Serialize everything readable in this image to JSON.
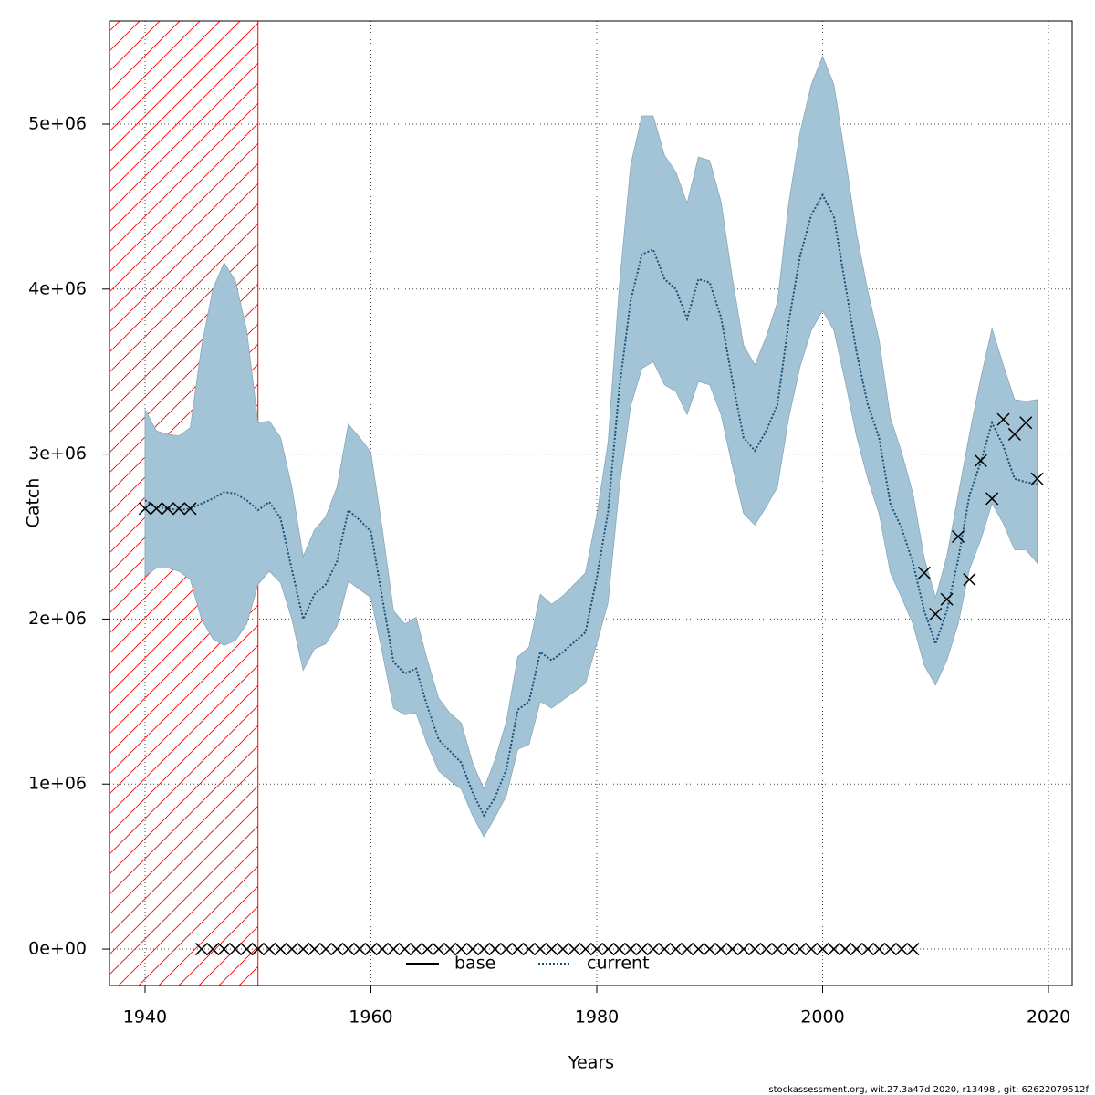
{
  "chart_data": {
    "type": "line",
    "xlabel": "Years",
    "ylabel": "Catch",
    "footer": "stockassessment.org, wit.27.3a47d   2020, r13498 , git: 62622079512f",
    "xlim": [
      1936.85,
      2022.1
    ],
    "ylim": [
      -221000,
      5625000
    ],
    "xticks": [
      1940,
      1960,
      1980,
      2000,
      2020
    ],
    "yticks": [
      {
        "value": 0,
        "label": "0e+00"
      },
      {
        "value": 1000000,
        "label": "1e+06"
      },
      {
        "value": 2000000,
        "label": "2e+06"
      },
      {
        "value": 3000000,
        "label": "3e+06"
      },
      {
        "value": 4000000,
        "label": "4e+06"
      },
      {
        "value": 5000000,
        "label": "5e+06"
      }
    ],
    "grid": true,
    "hatched_region": {
      "x": [
        1936.85,
        1950
      ],
      "color": "#ff0000"
    },
    "x": [
      1940,
      1941,
      1942,
      1943,
      1944,
      1945,
      1946,
      1947,
      1948,
      1949,
      1950,
      1951,
      1952,
      1953,
      1954,
      1955,
      1956,
      1957,
      1958,
      1959,
      1960,
      1961,
      1962,
      1963,
      1964,
      1965,
      1966,
      1967,
      1968,
      1969,
      1970,
      1971,
      1972,
      1973,
      1974,
      1975,
      1976,
      1977,
      1978,
      1979,
      1980,
      1981,
      1982,
      1983,
      1984,
      1985,
      1986,
      1987,
      1988,
      1989,
      1990,
      1991,
      1992,
      1993,
      1994,
      1995,
      1996,
      1997,
      1998,
      1999,
      2000,
      2001,
      2002,
      2003,
      2004,
      2005,
      2006,
      2007,
      2008,
      2009,
      2010,
      2011,
      2012,
      2013,
      2014,
      2015,
      2016,
      2017,
      2018,
      2019
    ],
    "series": [
      {
        "name": "current",
        "color": "#1a4f78",
        "dash": "dotted",
        "band_color": "#a3c4d6",
        "values": [
          2720000.0,
          2680000.0,
          2670000.0,
          2660000.0,
          2670000.0,
          2700000.0,
          2730000.0,
          2770000.0,
          2760000.0,
          2720000.0,
          2660000.0,
          2710000.0,
          2610000.0,
          2300000.0,
          2000000.0,
          2150000.0,
          2210000.0,
          2350000.0,
          2660000.0,
          2600000.0,
          2530000.0,
          2130000.0,
          1740000.0,
          1670000.0,
          1700000.0,
          1470000.0,
          1270000.0,
          1200000.0,
          1130000.0,
          950000.0,
          810000.0,
          920000.0,
          1090000.0,
          1450000.0,
          1500000.0,
          1800000.0,
          1750000.0,
          1800000.0,
          1860000.0,
          1920000.0,
          2250000.0,
          2650000.0,
          3400000.0,
          3930000.0,
          4210000.0,
          4240000.0,
          4060000.0,
          4000000.0,
          3820000.0,
          4060000.0,
          4040000.0,
          3830000.0,
          3450000.0,
          3100000.0,
          3020000.0,
          3140000.0,
          3300000.0,
          3800000.0,
          4200000.0,
          4450000.0,
          4570000.0,
          4440000.0,
          4030000.0,
          3620000.0,
          3300000.0,
          3100000.0,
          2700000.0,
          2550000.0,
          2340000.0,
          2050000.0,
          1850000.0,
          2050000.0,
          2360000.0,
          2750000.0,
          2950000.0,
          3190000.0,
          3050000.0,
          2850000.0,
          2830000.0,
          2820000.0
        ],
        "upper": [
          3270000.0,
          3140000.0,
          3120000.0,
          3110000.0,
          3160000.0,
          3650000.0,
          4000000.0,
          4160000.0,
          4050000.0,
          3750000.0,
          3190000.0,
          3200000.0,
          3100000.0,
          2800000.0,
          2380000.0,
          2540000.0,
          2620000.0,
          2800000.0,
          3180000.0,
          3100000.0,
          3010000.0,
          2550000.0,
          2050000.0,
          1970000.0,
          2010000.0,
          1750000.0,
          1520000.0,
          1430000.0,
          1370000.0,
          1130000.0,
          970000.0,
          1150000.0,
          1380000.0,
          1770000.0,
          1830000.0,
          2150000.0,
          2090000.0,
          2140000.0,
          2210000.0,
          2280000.0,
          2630000.0,
          3070000.0,
          4020000.0,
          4750000.0,
          5050000.0,
          5050000.0,
          4810000.0,
          4710000.0,
          4520000.0,
          4800000.0,
          4780000.0,
          4530000.0,
          4070000.0,
          3660000.0,
          3540000.0,
          3710000.0,
          3920000.0,
          4520000.0,
          4950000.0,
          5240000.0,
          5410000.0,
          5240000.0,
          4800000.0,
          4340000.0,
          3990000.0,
          3690000.0,
          3220000.0,
          3010000.0,
          2760000.0,
          2370000.0,
          2130000.0,
          2380000.0,
          2750000.0,
          3120000.0,
          3460000.0,
          3760000.0,
          3540000.0,
          3330000.0,
          3320000.0,
          3330000.0
        ],
        "lower": [
          2260000.0,
          2310000.0,
          2310000.0,
          2290000.0,
          2240000.0,
          2000000.0,
          1880000.0,
          1840000.0,
          1870000.0,
          1970000.0,
          2210000.0,
          2290000.0,
          2220000.0,
          2000000.0,
          1690000.0,
          1820000.0,
          1850000.0,
          1960000.0,
          2230000.0,
          2180000.0,
          2130000.0,
          1800000.0,
          1460000.0,
          1420000.0,
          1430000.0,
          1240000.0,
          1080000.0,
          1020000.0,
          970000.0,
          810000.0,
          680000.0,
          800000.0,
          930000.0,
          1210000.0,
          1240000.0,
          1500000.0,
          1460000.0,
          1510000.0,
          1560000.0,
          1610000.0,
          1850000.0,
          2100000.0,
          2800000.0,
          3290000.0,
          3520000.0,
          3560000.0,
          3420000.0,
          3380000.0,
          3240000.0,
          3440000.0,
          3420000.0,
          3240000.0,
          2930000.0,
          2640000.0,
          2570000.0,
          2680000.0,
          2800000.0,
          3220000.0,
          3530000.0,
          3750000.0,
          3870000.0,
          3750000.0,
          3440000.0,
          3110000.0,
          2850000.0,
          2640000.0,
          2280000.0,
          2130000.0,
          1970000.0,
          1720000.0,
          1600000.0,
          1750000.0,
          1970000.0,
          2300000.0,
          2480000.0,
          2700000.0,
          2580000.0,
          2420000.0,
          2420000.0,
          2340000.0
        ]
      }
    ],
    "observed": {
      "marker": "x",
      "color": "#000000",
      "values": [
        2670000.0,
        2670000.0,
        2670000.0,
        2670000.0,
        2670000.0,
        0,
        0,
        0,
        0,
        0,
        0,
        0,
        0,
        0,
        0,
        0,
        0,
        0,
        0,
        0,
        0,
        0,
        0,
        0,
        0,
        0,
        0,
        0,
        0,
        0,
        0,
        0,
        0,
        0,
        0,
        0,
        0,
        0,
        0,
        0,
        0,
        0,
        0,
        0,
        0,
        0,
        0,
        0,
        0,
        0,
        0,
        0,
        0,
        0,
        0,
        0,
        0,
        0,
        0,
        0,
        0,
        0,
        0,
        0,
        0,
        0,
        0,
        0,
        0,
        2280000.0,
        2030000.0,
        2120000.0,
        2500000.0,
        2240000.0,
        2960000.0,
        2730000.0,
        3210000.0,
        3120000.0,
        3190000.0,
        2850000.0
      ]
    },
    "legend": [
      {
        "name": "base",
        "color": "#000000",
        "dash": "solid"
      },
      {
        "name": "current",
        "color": "#1a4f78",
        "dash": "dotted"
      }
    ],
    "legend_position": "bottom"
  }
}
